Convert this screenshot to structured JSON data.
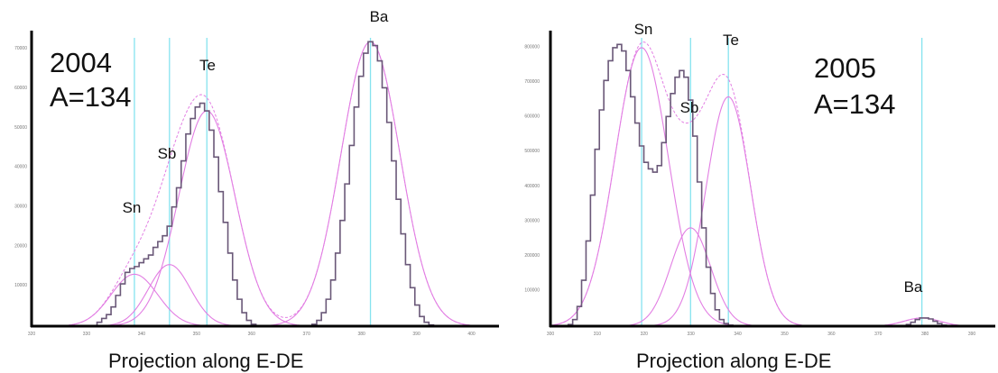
{
  "chart_data": [
    {
      "type": "line",
      "year_label": "2004",
      "mass_label": "A=134",
      "xlabel": "Projection along E-DE",
      "ylabel": "",
      "grid": false,
      "y_tick_labels": [
        "10000",
        "20000",
        "30000",
        "40000",
        "50000",
        "60000",
        "70000"
      ],
      "ylim": [
        0,
        75000
      ],
      "xlim": [
        0,
        100
      ],
      "total_color": "#6a5878",
      "component_color": "#e27ee3",
      "marker_color": "#86e3ef",
      "peaks": [
        {
          "name": "Sn",
          "center": 22,
          "amplitude": 13500,
          "sigma": 5
        },
        {
          "name": "Sb",
          "center": 29.5,
          "amplitude": 16000,
          "sigma": 4.5
        },
        {
          "name": "Te",
          "center": 37.5,
          "amplitude": 56000,
          "sigma": 6
        },
        {
          "name": "Ba",
          "center": 72.5,
          "amplitude": 74000,
          "sigma": 6.3
        }
      ],
      "bins": [
        0,
        1,
        2,
        3,
        4,
        5,
        6,
        7,
        8,
        9,
        10,
        11,
        12,
        13,
        14,
        15,
        16,
        17,
        18,
        19,
        20,
        21,
        22,
        23,
        24,
        25,
        26,
        27,
        28,
        29,
        30,
        31,
        32,
        33,
        34,
        35,
        36,
        37,
        38,
        39,
        40,
        41,
        42,
        43,
        44,
        45,
        46,
        47,
        48,
        49,
        50,
        51,
        52,
        53,
        54,
        55,
        56,
        57,
        58,
        59,
        60,
        61,
        62,
        63,
        64,
        65,
        66,
        67,
        68,
        69,
        70,
        71,
        72,
        73,
        74,
        75,
        76,
        77,
        78,
        79,
        80,
        81,
        82,
        83,
        84,
        85,
        86,
        87,
        88,
        89,
        90,
        91,
        92,
        93,
        94,
        95,
        96,
        97,
        98,
        99
      ],
      "counts": [
        0,
        0,
        0,
        0,
        0,
        0,
        0,
        0,
        0,
        0,
        0,
        0,
        0,
        50,
        1000,
        2000,
        3000,
        5000,
        8000,
        11000,
        14000,
        15000,
        15500,
        16500,
        17500,
        18500,
        20500,
        22000,
        23500,
        26000,
        31000,
        36000,
        43000,
        50000,
        54000,
        57000,
        58000,
        56000,
        51000,
        44000,
        35000,
        27000,
        19000,
        12000,
        7000,
        3500,
        1500,
        500,
        100,
        0,
        0,
        0,
        0,
        0,
        0,
        0,
        0,
        0,
        0,
        100,
        500,
        1500,
        3500,
        7000,
        12000,
        19000,
        27500,
        37000,
        47000,
        57000,
        65000,
        71000,
        74000,
        73000,
        69000,
        62000,
        53000,
        43000,
        33000,
        24000,
        16000,
        10000,
        5500,
        2500,
        1000,
        300,
        50,
        0,
        0,
        0,
        0,
        0,
        0,
        0,
        0,
        0,
        0,
        0,
        0,
        0
      ]
    },
    {
      "type": "line",
      "year_label": "2005",
      "mass_label": "A=134",
      "xlabel": "Projection along E-DE",
      "ylabel": "",
      "grid": false,
      "y_tick_labels": [
        "100000",
        "200000",
        "300000",
        "400000",
        "500000",
        "600000",
        "700000",
        "800000"
      ],
      "ylim": [
        0,
        880000
      ],
      "xlim": [
        0,
        100
      ],
      "total_color": "#6a5878",
      "component_color": "#e27ee3",
      "marker_color": "#86e3ef",
      "peaks": [
        {
          "name": "Sn",
          "center": 20.5,
          "amplitude": 850000,
          "sigma": 6
        },
        {
          "name": "Sb",
          "center": 31.5,
          "amplitude": 300000,
          "sigma": 4.5
        },
        {
          "name": "Te",
          "center": 40,
          "amplitude": 700000,
          "sigma": 5
        },
        {
          "name": "Ba",
          "center": 83.5,
          "amplitude": 25000,
          "sigma": 4
        }
      ],
      "bins": [
        0,
        1,
        2,
        3,
        4,
        5,
        6,
        7,
        8,
        9,
        10,
        11,
        12,
        13,
        14,
        15,
        16,
        17,
        18,
        19,
        20,
        21,
        22,
        23,
        24,
        25,
        26,
        27,
        28,
        29,
        30,
        31,
        32,
        33,
        34,
        35,
        36,
        37,
        38,
        39,
        40,
        41,
        42,
        43,
        44,
        45,
        46,
        47,
        48,
        49,
        50,
        51,
        52,
        53,
        54,
        55,
        56,
        57,
        58,
        59,
        60,
        61,
        62,
        63,
        64,
        65,
        66,
        67,
        68,
        69,
        70,
        71,
        72,
        73,
        74,
        75,
        76,
        77,
        78,
        79,
        80,
        81,
        82,
        83,
        84,
        85,
        86,
        87,
        88,
        89,
        90,
        91,
        92,
        93,
        94,
        95,
        96,
        97,
        98,
        99
      ],
      "counts": [
        0,
        0,
        0,
        0,
        5000,
        20000,
        60000,
        140000,
        260000,
        400000,
        540000,
        660000,
        750000,
        810000,
        850000,
        860000,
        840000,
        780000,
        700000,
        620000,
        550000,
        500000,
        480000,
        470000,
        490000,
        560000,
        640000,
        710000,
        760000,
        780000,
        760000,
        690000,
        580000,
        440000,
        300000,
        180000,
        100000,
        50000,
        20000,
        8000,
        3000,
        1000,
        0,
        0,
        0,
        0,
        0,
        0,
        0,
        0,
        0,
        0,
        0,
        0,
        0,
        0,
        0,
        0,
        0,
        0,
        0,
        0,
        0,
        0,
        0,
        0,
        0,
        0,
        0,
        0,
        0,
        0,
        0,
        0,
        0,
        0,
        0,
        0,
        0,
        1000,
        5000,
        12000,
        20000,
        25000,
        25000,
        22000,
        15000,
        8000,
        3000,
        1000,
        0,
        0,
        0,
        0,
        0,
        0,
        0,
        0,
        0,
        0
      ]
    }
  ]
}
